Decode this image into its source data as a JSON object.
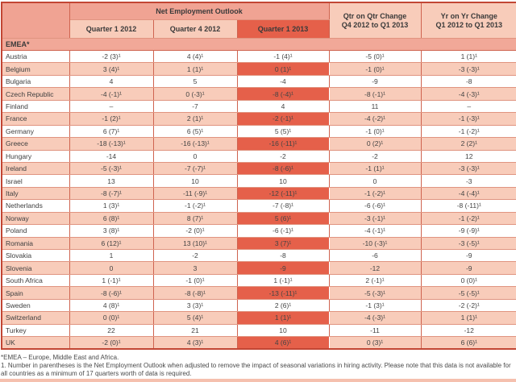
{
  "table": {
    "header": {
      "net_outlook": "Net Employment Outlook",
      "col_q1_2012": "Quarter 1 2012",
      "col_q4_2012": "Quarter 4 2012",
      "col_q1_2013": "Quarter 1 2013",
      "qtr_change_title": "Qtr on Qtr Change",
      "qtr_change_sub": "Q4 2012 to Q1 2013",
      "yr_change_title": "Yr on Yr Change",
      "yr_change_sub": "Q1 2012 to Q1 2013"
    },
    "region_label": "EMEA*",
    "rows": [
      {
        "country": "Austria",
        "values": [
          "-2 (3)¹",
          "4 (4)¹",
          "-1 (4)¹",
          "-5 (0)¹",
          "1 (1)¹"
        ]
      },
      {
        "country": "Belgium",
        "values": [
          "3 (4)¹",
          "1 (1)¹",
          "0 (1)¹",
          "-1 (0)¹",
          "-3 (-3)¹"
        ]
      },
      {
        "country": "Bulgaria",
        "values": [
          "4",
          "5",
          "-4",
          "-9",
          "-8"
        ]
      },
      {
        "country": "Czech Republic",
        "values": [
          "-4 (-1)¹",
          "0 (-3)¹",
          "-8 (-4)¹",
          "-8 (-1)¹",
          "-4 (-3)¹"
        ]
      },
      {
        "country": "Finland",
        "values": [
          "–",
          "-7",
          "4",
          "11",
          "–"
        ]
      },
      {
        "country": "France",
        "values": [
          "-1 (2)¹",
          "2 (1)¹",
          "-2 (-1)¹",
          "-4 (-2)¹",
          "-1 (-3)¹"
        ]
      },
      {
        "country": "Germany",
        "values": [
          "6 (7)¹",
          "6 (5)¹",
          "5 (5)¹",
          "-1 (0)¹",
          "-1 (-2)¹"
        ]
      },
      {
        "country": "Greece",
        "values": [
          "-18 (-13)¹",
          "-16 (-13)¹",
          "-16 (-11)¹",
          "0 (2)¹",
          "2 (2)¹"
        ]
      },
      {
        "country": "Hungary",
        "values": [
          "-14",
          "0",
          "-2",
          "-2",
          "12"
        ]
      },
      {
        "country": "Ireland",
        "values": [
          "-5 (-3)¹",
          "-7 (-7)¹",
          "-8 (-6)¹",
          "-1 (1)¹",
          "-3 (-3)¹"
        ]
      },
      {
        "country": "Israel",
        "values": [
          "13",
          "10",
          "10",
          "0",
          "-3"
        ]
      },
      {
        "country": "Italy",
        "values": [
          "-8 (-7)¹",
          "-11 (-9)¹",
          "-12 (-11)¹",
          "-1 (-2)¹",
          "-4 (-4)¹"
        ]
      },
      {
        "country": "Netherlands",
        "values": [
          "1 (3)¹",
          "-1 (-2)¹",
          "-7 (-8)¹",
          "-6 (-6)¹",
          "-8 (-11)¹"
        ]
      },
      {
        "country": "Norway",
        "values": [
          "6 (8)¹",
          "8 (7)¹",
          "5 (6)¹",
          "-3 (-1)¹",
          "-1 (-2)¹"
        ]
      },
      {
        "country": "Poland",
        "values": [
          "3 (8)¹",
          "-2 (0)¹",
          "-6 (-1)¹",
          "-4 (-1)¹",
          "-9 (-9)¹"
        ]
      },
      {
        "country": "Romania",
        "values": [
          "6 (12)¹",
          "13 (10)¹",
          "3 (7)¹",
          "-10 (-3)¹",
          "-3 (-5)¹"
        ]
      },
      {
        "country": "Slovakia",
        "values": [
          "1",
          "-2",
          "-8",
          "-6",
          "-9"
        ]
      },
      {
        "country": "Slovenia",
        "values": [
          "0",
          "3",
          "-9",
          "-12",
          "-9"
        ]
      },
      {
        "country": "South Africa",
        "values": [
          "1 (-1)¹",
          "-1 (0)¹",
          "1 (-1)¹",
          "2 (-1)¹",
          "0 (0)¹"
        ]
      },
      {
        "country": "Spain",
        "values": [
          "-8 (-6)¹",
          "-8 (-8)¹",
          "-13 (-11)¹",
          "-5 (-3)¹",
          "-5 (-5)¹"
        ]
      },
      {
        "country": "Sweden",
        "values": [
          "4 (8)¹",
          "3 (3)¹",
          "2 (6)¹",
          "-1 (3)¹",
          "-2 (-2)¹"
        ]
      },
      {
        "country": "Switzerland",
        "values": [
          "0 (0)¹",
          "5 (4)¹",
          "1 (1)¹",
          "-4 (-3)¹",
          "1 (1)¹"
        ]
      },
      {
        "country": "Turkey",
        "values": [
          "22",
          "21",
          "10",
          "-11",
          "-12"
        ]
      },
      {
        "country": "UK",
        "values": [
          "-2 (0)¹",
          "4 (3)¹",
          "4 (6)¹",
          "0 (3)¹",
          "6 (6)¹"
        ]
      }
    ]
  },
  "footnotes": [
    "*EMEA – Europe, Middle East and Africa.",
    "1. Number in parentheses is the Net Employment Outlook when adjusted to remove the impact of seasonal variations in hiring activity. Please note that this data is not available for all countries as a minimum of 17 quarters worth of data is required."
  ],
  "colors": {
    "header_salmon": "#f0a393",
    "subheader_peach": "#f8ccba",
    "highlight_red": "#e5604a",
    "region_bg": "#f1a898",
    "grid_border": "#cf6450",
    "outer_border": "#c24634"
  }
}
